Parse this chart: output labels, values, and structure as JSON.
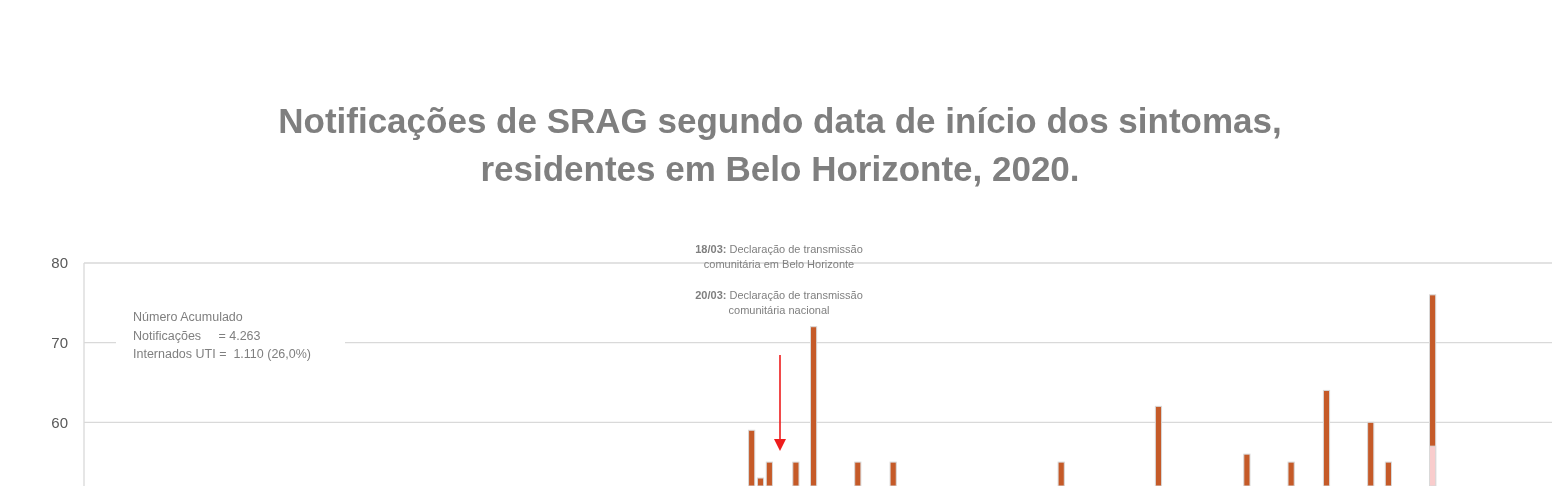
{
  "chart_data": {
    "type": "bar",
    "title": "Notificações de SRAG segundo data de início dos sintomas, residentes em Belo Horizonte, 2020.",
    "annotations": [
      "18/03: Declaração de transmissão comunitária em Belo Horizonte",
      "20/03: Declaração de transmissão comunitária nacional",
      "Número Acumulado\nNotificações     = 4.263\nInternados UTI =  1.110 (26,0%)"
    ],
    "categories": [
      null,
      null,
      null,
      null,
      null,
      null,
      null,
      null,
      null,
      null,
      null,
      null,
      null,
      null,
      null,
      null,
      null,
      null,
      null,
      null,
      null,
      null,
      null,
      null,
      null,
      null,
      null,
      null,
      null,
      null,
      null,
      null,
      null,
      null,
      null,
      null,
      null,
      null,
      null,
      null,
      null,
      null,
      null,
      null,
      null,
      null,
      null,
      null,
      null,
      null,
      null,
      null,
      null,
      null,
      null,
      null,
      null,
      null,
      null,
      null,
      null,
      null,
      null,
      null,
      null,
      null,
      null,
      null,
      null,
      null,
      null,
      null,
      null,
      null,
      null,
      null,
      null,
      null,
      null,
      null,
      null,
      null,
      null,
      null,
      null,
      null,
      null,
      null,
      null,
      null,
      null,
      null,
      null,
      null,
      null,
      null,
      null,
      null,
      null,
      null,
      null,
      null,
      null,
      null,
      null,
      null,
      null,
      null,
      null,
      null,
      null,
      null,
      null,
      null,
      null,
      null,
      null,
      null,
      null,
      null,
      null,
      null,
      null,
      null,
      null,
      null,
      null,
      null,
      null,
      null,
      null,
      null,
      null,
      null,
      null,
      null,
      null,
      null,
      null,
      null,
      null,
      null,
      null,
      null,
      null,
      null,
      null,
      null,
      null,
      null,
      null,
      null,
      null,
      null,
      null,
      null,
      null,
      null,
      null,
      null,
      null,
      null,
      null,
      null,
      null,
      null
    ],
    "series": [
      {
        "color": "#c55a28",
        "values": [
          null,
          null,
          null,
          null,
          null,
          null,
          null,
          null,
          null,
          null,
          null,
          null,
          null,
          null,
          null,
          null,
          null,
          null,
          null,
          null,
          null,
          null,
          null,
          null,
          null,
          null,
          null,
          null,
          null,
          null,
          null,
          null,
          null,
          null,
          null,
          null,
          null,
          null,
          null,
          null,
          null,
          null,
          null,
          null,
          null,
          null,
          null,
          null,
          null,
          null,
          null,
          null,
          null,
          null,
          null,
          null,
          null,
          null,
          null,
          null,
          null,
          null,
          null,
          null,
          null,
          null,
          null,
          null,
          null,
          null,
          null,
          null,
          null,
          null,
          null,
          59,
          53,
          55,
          null,
          null,
          55,
          null,
          72,
          null,
          null,
          null,
          null,
          55,
          null,
          null,
          null,
          55,
          null,
          null,
          null,
          null,
          null,
          null,
          null,
          null,
          null,
          null,
          null,
          null,
          null,
          null,
          null,
          null,
          null,
          null,
          55,
          null,
          null,
          null,
          null,
          null,
          null,
          null,
          null,
          null,
          null,
          62,
          null,
          null,
          null,
          null,
          null,
          null,
          null,
          null,
          null,
          56,
          null,
          null,
          null,
          null,
          55,
          null,
          null,
          null,
          64,
          null,
          null,
          null,
          null,
          60,
          null,
          55,
          null,
          null,
          null,
          null,
          76,
          null,
          null,
          null,
          null,
          null,
          null,
          null,
          null,
          null,
          null,
          null,
          null,
          null
        ]
      },
      {
        "color": "#f9cccc",
        "values": [
          null,
          null,
          null,
          null,
          null,
          null,
          null,
          null,
          null,
          null,
          null,
          null,
          null,
          null,
          null,
          null,
          null,
          null,
          null,
          null,
          null,
          null,
          null,
          null,
          null,
          null,
          null,
          null,
          null,
          null,
          null,
          null,
          null,
          null,
          null,
          null,
          null,
          null,
          null,
          null,
          null,
          null,
          null,
          null,
          null,
          null,
          null,
          null,
          null,
          null,
          null,
          null,
          null,
          null,
          null,
          null,
          null,
          null,
          null,
          null,
          null,
          null,
          null,
          null,
          null,
          null,
          null,
          null,
          null,
          null,
          null,
          null,
          null,
          null,
          null,
          null,
          null,
          null,
          null,
          null,
          null,
          null,
          null,
          null,
          null,
          null,
          null,
          null,
          null,
          null,
          null,
          null,
          null,
          null,
          null,
          null,
          null,
          null,
          null,
          null,
          null,
          null,
          null,
          null,
          null,
          null,
          null,
          null,
          null,
          null,
          null,
          null,
          null,
          null,
          null,
          null,
          null,
          null,
          null,
          null,
          null,
          null,
          null,
          null,
          null,
          null,
          null,
          null,
          null,
          null,
          null,
          null,
          null,
          null,
          null,
          null,
          null,
          null,
          null,
          null,
          null,
          null,
          null,
          null,
          null,
          null,
          null,
          null,
          null,
          null,
          null,
          null,
          57,
          null,
          null,
          null,
          null,
          null,
          null,
          null,
          null,
          null,
          null,
          null,
          null,
          null
        ]
      }
    ],
    "ylim": [
      52,
      80
    ],
    "yticks": [
      60,
      70,
      80
    ],
    "grid": "y",
    "tick_labels": "y"
  }
}
